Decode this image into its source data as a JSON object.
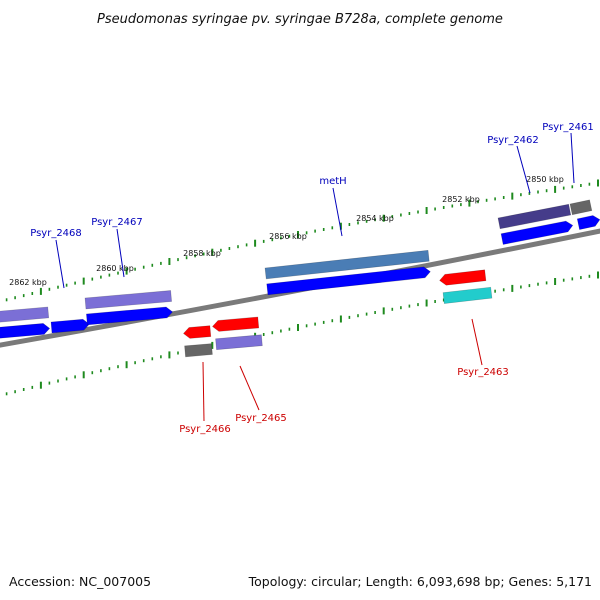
{
  "title": "Pseudomonas syringae pv. syringae B728a, complete genome",
  "footer": {
    "accession": "Accession: NC_007005",
    "summary": "Topology: circular; Length: 6,093,698 bp; Genes: 5,171"
  },
  "colors": {
    "backbone": "#7a7a7a",
    "tick": "#1e8a1e",
    "label_forward": "#0000bb",
    "label_reverse": "#cc0000",
    "blue": "#0000ff",
    "purple": "#7b6fd6",
    "darkpurple": "#453c8a",
    "steelblue": "#4a7db5",
    "red": "#ff0000",
    "cyan": "#22cccc",
    "gray": "#666666"
  },
  "kbp_labels": [
    "2862 kbp",
    "2860 kbp",
    "2858 kbp",
    "2856 kbp",
    "2854 kbp",
    "2852 kbp",
    "2850 kbp"
  ],
  "gene_labels": [
    {
      "text": "Psyr_2468",
      "strand": "forward"
    },
    {
      "text": "Psyr_2467",
      "strand": "forward"
    },
    {
      "text": "metH",
      "strand": "forward"
    },
    {
      "text": "Psyr_2462",
      "strand": "forward"
    },
    {
      "text": "Psyr_2461",
      "strand": "forward"
    },
    {
      "text": "Psyr_2466",
      "strand": "reverse"
    },
    {
      "text": "Psyr_2465",
      "strand": "reverse"
    },
    {
      "text": "Psyr_2463",
      "strand": "reverse"
    }
  ]
}
